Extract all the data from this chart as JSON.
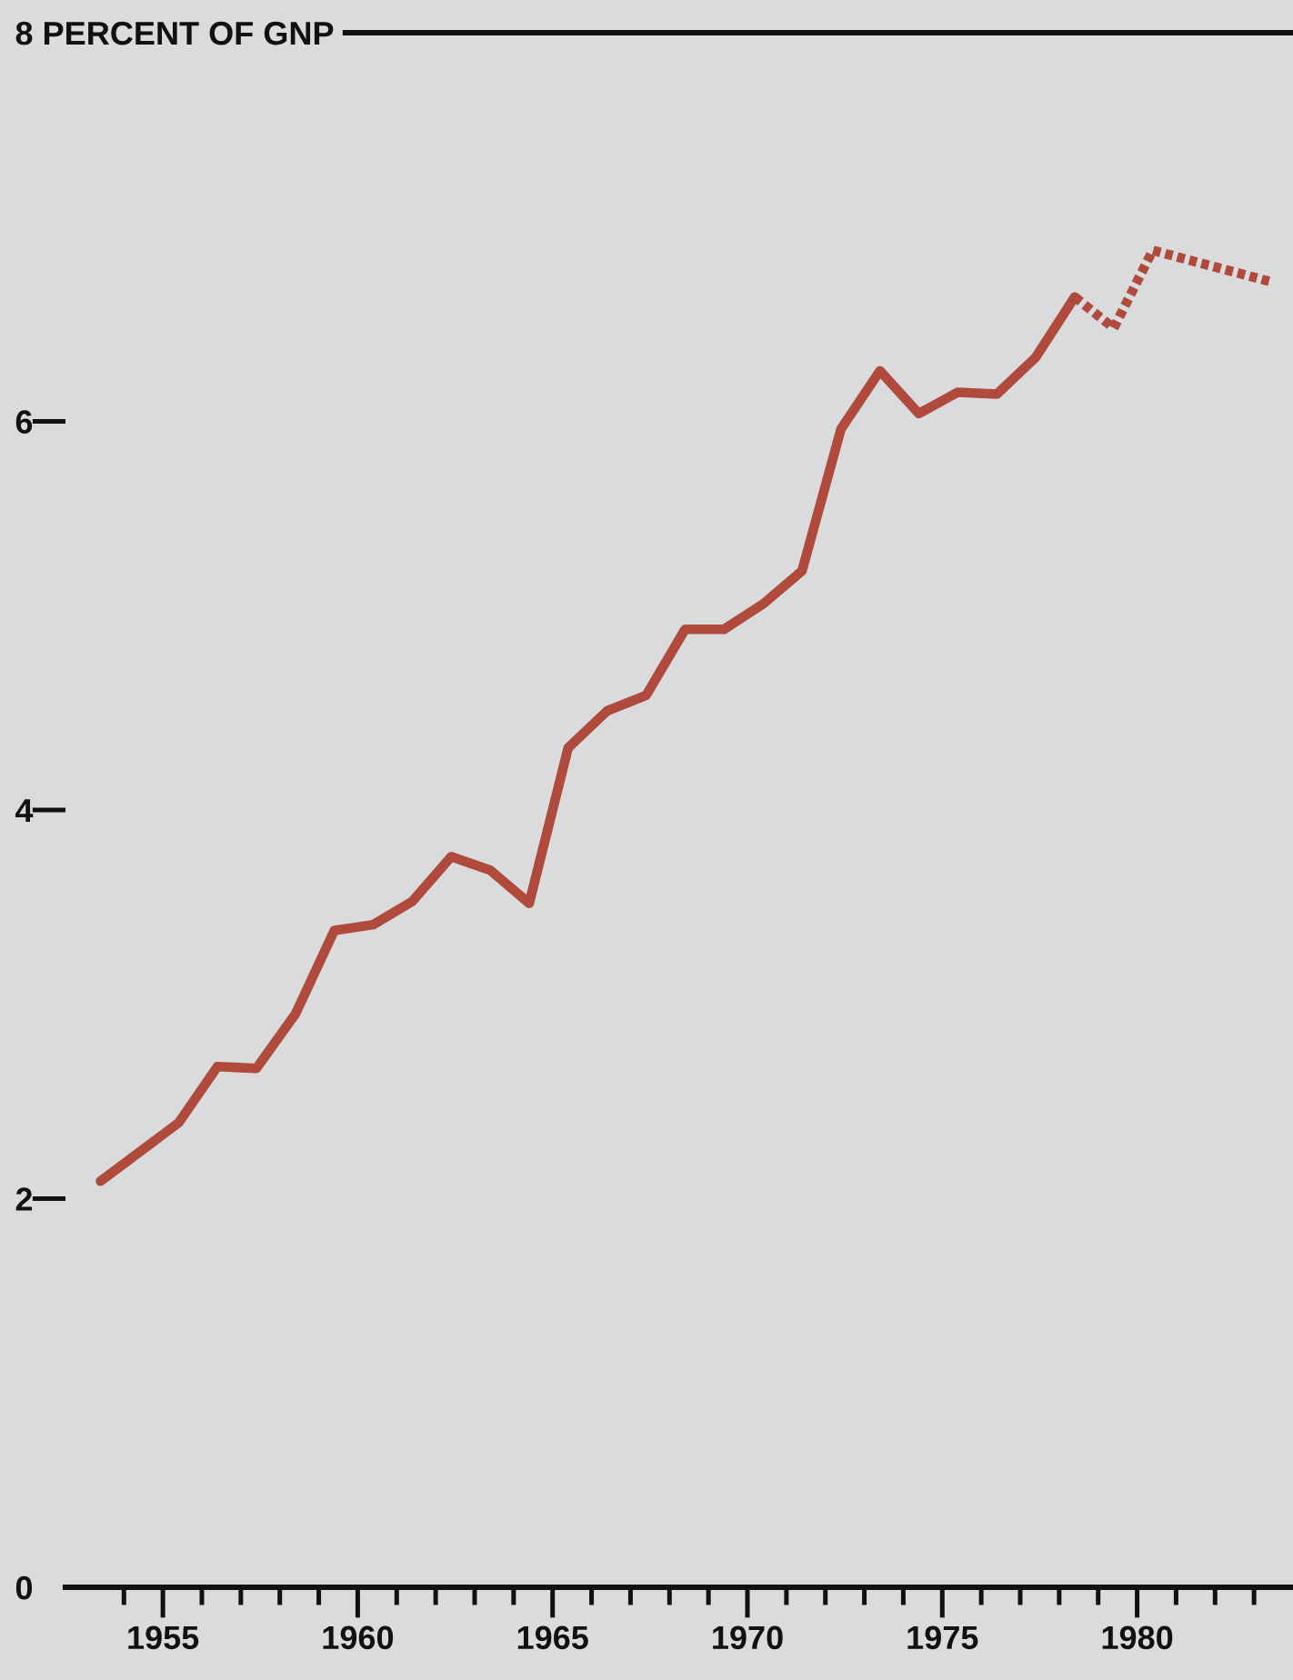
{
  "chart_data": {
    "type": "line",
    "series": [
      {
        "color": "#b04a3c",
        "line_style": "solid",
        "x": [
          1953.4,
          1954.4,
          1955.4,
          1956.4,
          1957.4,
          1958.4,
          1959.4,
          1960.4,
          1961.4,
          1962.4,
          1963.4,
          1964.4,
          1965.4,
          1966.4,
          1967.4,
          1968.4,
          1969.4,
          1970.4,
          1971.4,
          1972.4,
          1973.4,
          1974.4,
          1975.4,
          1976.4,
          1977.4,
          1978.4
        ],
        "values": [
          2.09,
          2.24,
          2.39,
          2.68,
          2.67,
          2.95,
          3.38,
          3.41,
          3.53,
          3.76,
          3.69,
          3.52,
          4.32,
          4.51,
          4.59,
          4.93,
          4.93,
          5.06,
          5.23,
          5.96,
          6.26,
          6.04,
          6.15,
          6.14,
          6.33,
          6.64
        ]
      },
      {
        "color": "#b04a3c",
        "line_style": "dotted",
        "x": [
          1978.4,
          1979.4,
          1980.4,
          1983.4
        ],
        "values": [
          6.64,
          6.48,
          6.88,
          6.72
        ]
      }
    ],
    "xlim": [
      1952.5,
      1984
    ],
    "xticks": [
      {
        "value": 1954,
        "label": null
      },
      {
        "value": 1955,
        "label": "1955"
      },
      {
        "value": 1956,
        "label": null
      },
      {
        "value": 1957,
        "label": null
      },
      {
        "value": 1958,
        "label": null
      },
      {
        "value": 1959,
        "label": null
      },
      {
        "value": 1960,
        "label": "1960"
      },
      {
        "value": 1961,
        "label": null
      },
      {
        "value": 1962,
        "label": null
      },
      {
        "value": 1963,
        "label": null
      },
      {
        "value": 1964,
        "label": null
      },
      {
        "value": 1965,
        "label": "1965"
      },
      {
        "value": 1966,
        "label": null
      },
      {
        "value": 1967,
        "label": null
      },
      {
        "value": 1968,
        "label": null
      },
      {
        "value": 1969,
        "label": null
      },
      {
        "value": 1970,
        "label": "1970"
      },
      {
        "value": 1971,
        "label": null
      },
      {
        "value": 1972,
        "label": null
      },
      {
        "value": 1973,
        "label": null
      },
      {
        "value": 1974,
        "label": null
      },
      {
        "value": 1975,
        "label": "1975"
      },
      {
        "value": 1976,
        "label": null
      },
      {
        "value": 1977,
        "label": null
      },
      {
        "value": 1978,
        "label": null
      },
      {
        "value": 1979,
        "label": null
      },
      {
        "value": 1980,
        "label": "1980"
      },
      {
        "value": 1981,
        "label": null
      },
      {
        "value": 1982,
        "label": null
      },
      {
        "value": 1983,
        "label": null
      }
    ],
    "ylim": [
      0,
      8
    ],
    "yticks": [
      0,
      2,
      4,
      6,
      {
        "value": 8,
        "label": "8 PERCENT OF GNP"
      }
    ]
  }
}
